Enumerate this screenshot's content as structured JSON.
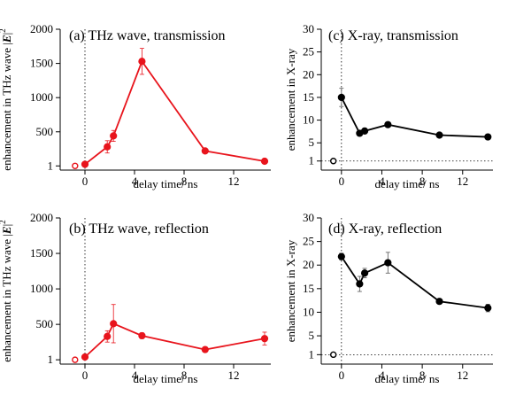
{
  "chart_data": [
    {
      "id": "a",
      "type": "line",
      "title": "(a) THz wave, transmission",
      "xlabel": "delay time/ ns",
      "ylabel": "enhancement in THz wave |E|",
      "ylabel_main": "enhancement in THz wave |",
      "ylabel_bold": "E",
      "ylabel_tail": "|",
      "ylabel_sup": "2",
      "xlim": [
        -2,
        15
      ],
      "ylim": [
        -60,
        2000
      ],
      "xticks": [
        0,
        4,
        8,
        12
      ],
      "xtick_labels": [
        "0",
        "4",
        "8",
        "12"
      ],
      "yticks": [
        1,
        500,
        1000,
        1500,
        2000
      ],
      "ytick_labels": [
        "1",
        "500",
        "1000",
        "1500",
        "2000"
      ],
      "ref_vline_x": 0,
      "ref_hline_y": null,
      "color": "#e8141c",
      "series": [
        {
          "name": "enhancement",
          "x": [
            0,
            1.8,
            2.3,
            4.6,
            9.7,
            14.5
          ],
          "y": [
            25,
            280,
            440,
            1530,
            220,
            70
          ],
          "err": [
            12,
            90,
            80,
            190,
            25,
            18
          ]
        }
      ],
      "open_marker": {
        "x": -0.8,
        "y": 1
      }
    },
    {
      "id": "c",
      "type": "line",
      "title": "(c) X-ray, transmission",
      "xlabel": "delay time/ ns",
      "ylabel": "enhancement in X-ray",
      "xlim": [
        -2,
        15
      ],
      "ylim": [
        -1,
        30
      ],
      "xticks": [
        0,
        4,
        8,
        12
      ],
      "xtick_labels": [
        "0",
        "4",
        "8",
        "12"
      ],
      "yticks": [
        1,
        5,
        10,
        15,
        20,
        25,
        30
      ],
      "ytick_labels": [
        "1",
        "5",
        "10",
        "15",
        "20",
        "25",
        "30"
      ],
      "ref_vline_x": 0,
      "ref_hline_y": 1,
      "color": "#000000",
      "series": [
        {
          "name": "enhancement",
          "x": [
            0,
            1.8,
            2.3,
            4.6,
            9.7,
            14.5
          ],
          "y": [
            15,
            7.1,
            7.6,
            9,
            6.7,
            6.3
          ],
          "err": [
            2,
            0.5,
            0.6,
            0.5,
            0.4,
            0.4
          ]
        }
      ],
      "open_marker": {
        "x": -0.8,
        "y": 1
      }
    },
    {
      "id": "b",
      "type": "line",
      "title": "(b) THz wave, reflection",
      "xlabel": "delay time/ ns",
      "ylabel": "enhancement in THz wave |E|",
      "ylabel_main": "enhancement in THz wave |",
      "ylabel_bold": "E",
      "ylabel_tail": "|",
      "ylabel_sup": "2",
      "xlim": [
        -2,
        15
      ],
      "ylim": [
        -60,
        2000
      ],
      "xticks": [
        0,
        4,
        8,
        12
      ],
      "xtick_labels": [
        "0",
        "4",
        "8",
        "12"
      ],
      "yticks": [
        1,
        500,
        1000,
        1500,
        2000
      ],
      "ytick_labels": [
        "1",
        "500",
        "1000",
        "1500",
        "2000"
      ],
      "ref_vline_x": 0,
      "ref_hline_y": null,
      "color": "#e8141c",
      "series": [
        {
          "name": "enhancement",
          "x": [
            0,
            1.8,
            2.3,
            4.6,
            9.7,
            14.5
          ],
          "y": [
            40,
            330,
            510,
            340,
            145,
            300
          ],
          "err": [
            15,
            80,
            270,
            40,
            20,
            90
          ]
        }
      ],
      "open_marker": {
        "x": -0.8,
        "y": 1
      }
    },
    {
      "id": "d",
      "type": "line",
      "title": "(d) X-ray, reflection",
      "xlabel": "delay time/ ns",
      "ylabel": "enhancement in X-ray",
      "xlim": [
        -2,
        15
      ],
      "ylim": [
        -1,
        30
      ],
      "xticks": [
        0,
        4,
        8,
        12
      ],
      "xtick_labels": [
        "0",
        "4",
        "8",
        "12"
      ],
      "yticks": [
        1,
        5,
        10,
        15,
        20,
        25,
        30
      ],
      "ytick_labels": [
        "1",
        "5",
        "10",
        "15",
        "20",
        "25",
        "30"
      ],
      "ref_vline_x": 0,
      "ref_hline_y": 1,
      "color": "#000000",
      "series": [
        {
          "name": "enhancement",
          "x": [
            0,
            1.8,
            2.3,
            4.6,
            9.7,
            14.5
          ],
          "y": [
            21.8,
            16,
            18.3,
            20.5,
            12.3,
            10.9
          ],
          "err": [
            0.7,
            1.6,
            1,
            2.2,
            0.4,
            0.8
          ]
        }
      ],
      "open_marker": {
        "x": -0.8,
        "y": 1
      }
    }
  ]
}
